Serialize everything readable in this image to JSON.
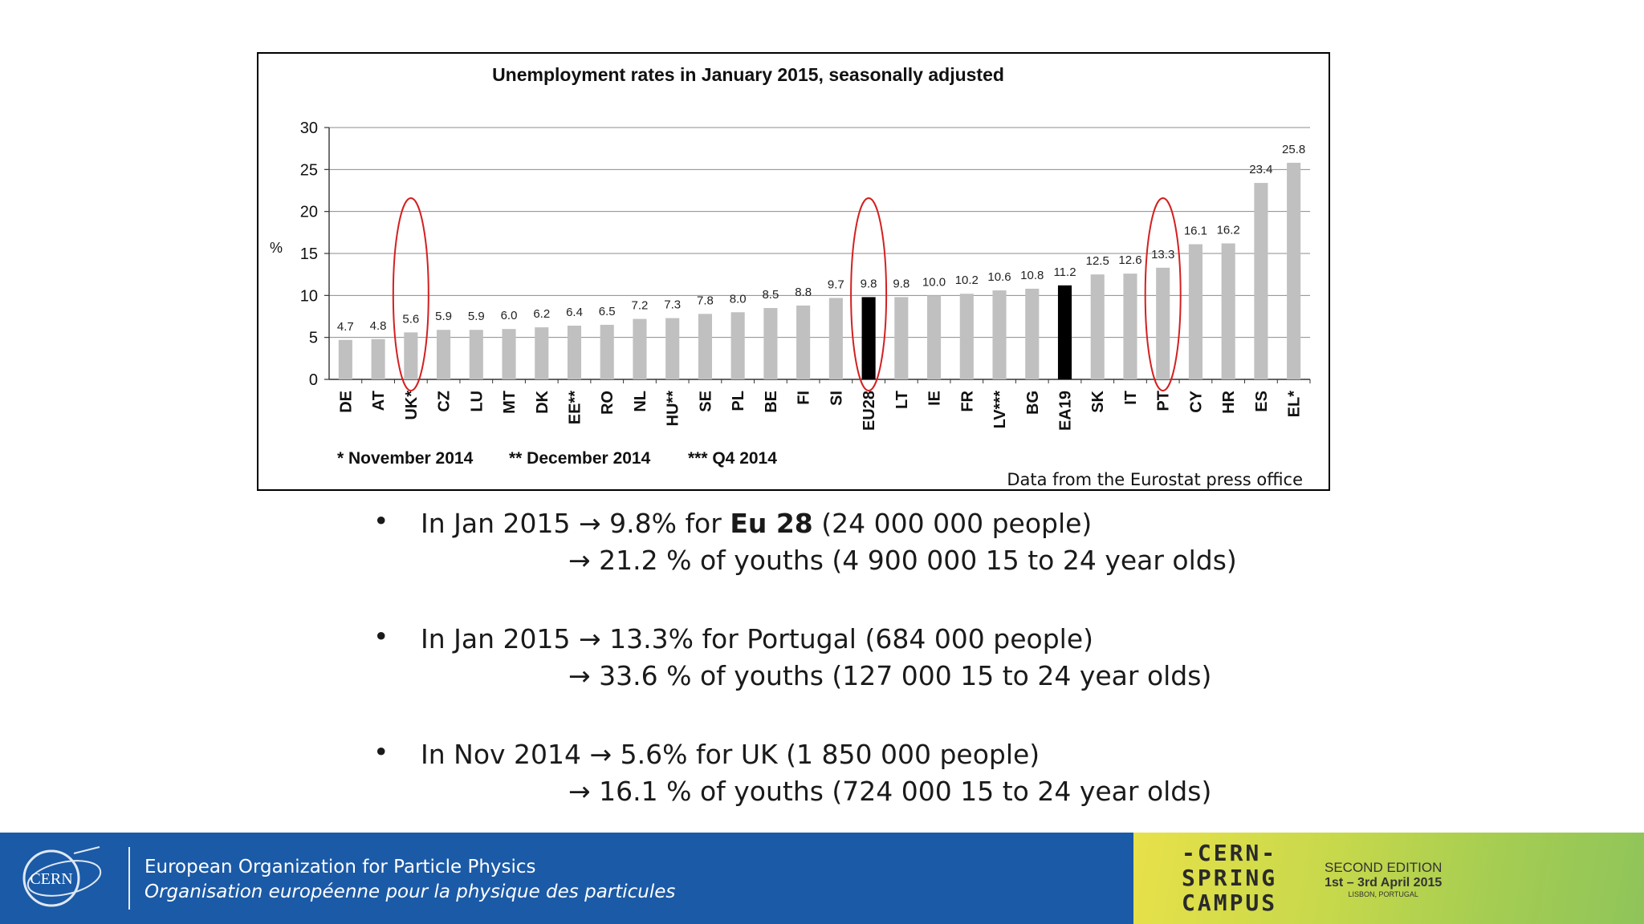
{
  "chart_data": {
    "type": "bar",
    "title": "Unemployment rates in January 2015, seasonally adjusted",
    "ylabel": "%",
    "xlabel": "",
    "ylim": [
      0,
      30
    ],
    "yticks": [
      0,
      5,
      10,
      15,
      20,
      25,
      30
    ],
    "grid": true,
    "categories": [
      "DE",
      "AT",
      "UK*",
      "CZ",
      "LU",
      "MT",
      "DK",
      "EE**",
      "RO",
      "NL",
      "HU**",
      "SE",
      "PL",
      "BE",
      "FI",
      "SI",
      "EU28",
      "LT",
      "IE",
      "FR",
      "LV***",
      "BG",
      "EA19",
      "SK",
      "IT",
      "PT",
      "CY",
      "HR",
      "ES",
      "EL*"
    ],
    "values": [
      4.7,
      4.8,
      5.6,
      5.9,
      5.9,
      6.0,
      6.2,
      6.4,
      6.5,
      7.2,
      7.3,
      7.8,
      8.0,
      8.5,
      8.8,
      9.7,
      9.8,
      9.8,
      10.0,
      10.2,
      10.6,
      10.8,
      11.2,
      12.5,
      12.6,
      13.3,
      16.1,
      16.2,
      23.4,
      25.8
    ],
    "value_labels": [
      "4.7",
      "4.8",
      "5.6",
      "5.9",
      "5.9",
      "6.0",
      "6.2",
      "6.4",
      "6.5",
      "7.2",
      "7.3",
      "7.8",
      "8.0",
      "8.5",
      "8.8",
      "9.7",
      "9.8",
      "9.8",
      "10.0",
      "10.2",
      "10.6",
      "10.8",
      "11.2",
      "12.5",
      "12.6",
      "13.3",
      "16.1",
      "16.2",
      "23.4",
      "25.8"
    ],
    "highlighted": [
      "EU28",
      "EA19"
    ],
    "circled": [
      "UK*",
      "EU28",
      "PT"
    ],
    "footnotes": [
      "* November 2014",
      "** December 2014",
      "*** Q4 2014"
    ],
    "colors": {
      "bar": "#c0c0c0",
      "highlight": "#000000",
      "circle": "#d42020"
    }
  },
  "source": "Data from the Eurostat press office",
  "bullets": [
    {
      "dot": "•",
      "line1_pre": "In Jan 2015 ",
      "arrow": "→",
      "line1_mid": " 9.8% for ",
      "line1_bold": "Eu 28",
      "line1_post": " (24 000 000 people)",
      "line2": " 21.2 % of youths (4 900 000 15 to 24 year olds)"
    },
    {
      "dot": "•",
      "line1_pre": "In Jan 2015 ",
      "arrow": "→",
      "line1_mid": " 13.3% for Portugal (684 000 people)",
      "line1_bold": "",
      "line1_post": "",
      "line2": " 33.6 % of youths (127 000 15 to 24 year olds)"
    },
    {
      "dot": "•",
      "line1_pre": "In Nov 2014 ",
      "arrow": "→",
      "line1_mid": " 5.6% for UK (1 850 000 people)",
      "line1_bold": "",
      "line1_post": "",
      "line2": " 16.1 % of youths (724 000 15 to 24 year olds)"
    }
  ],
  "footer": {
    "logo_text": "CERN",
    "org_en": "European Organization for Particle Physics",
    "org_fr": "Organisation européenne pour la physique des particules",
    "campus_line1": "-CERN-",
    "campus_line2": "SPRING",
    "campus_line3": "CAMPUS",
    "edition_line1": "SECOND EDITION",
    "edition_line2": "1st – 3rd April 2015",
    "edition_line3": "LISBON, PORTUGAL"
  }
}
